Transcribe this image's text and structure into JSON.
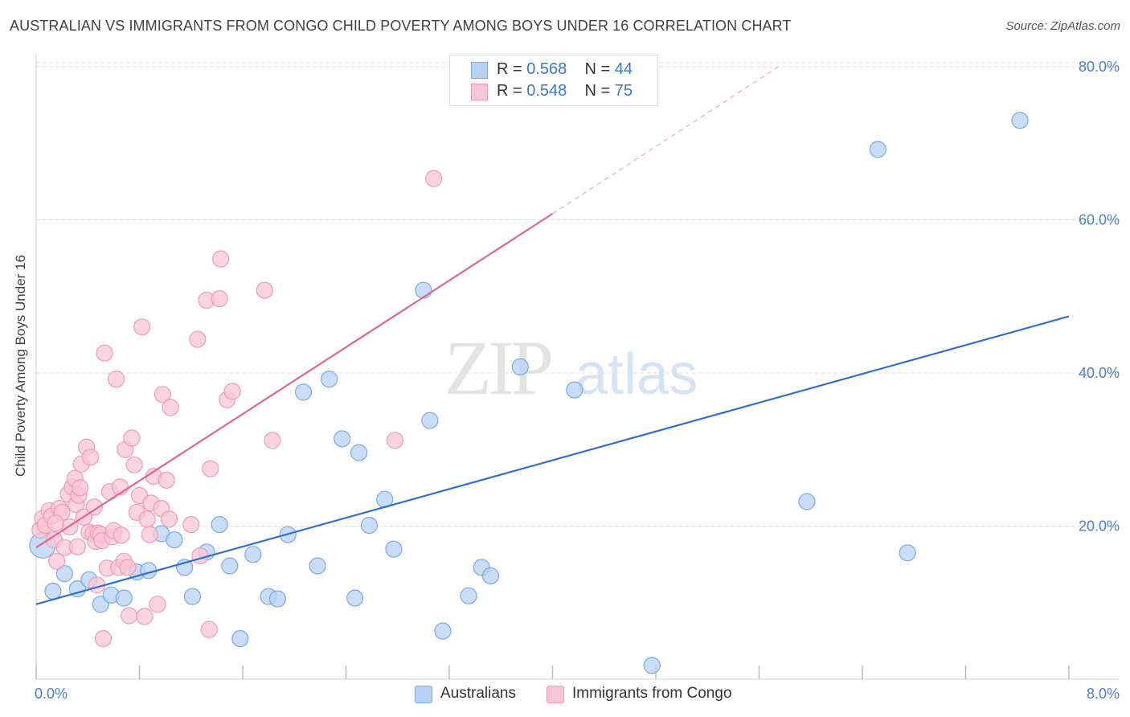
{
  "title": "AUSTRALIAN VS IMMIGRANTS FROM CONGO CHILD POVERTY AMONG BOYS UNDER 16 CORRELATION CHART",
  "source": "Source: ZipAtlas.com",
  "watermark": {
    "zip": "ZIP",
    "atlas": "atlas"
  },
  "legend": {
    "rows": [
      {
        "r_label": "R =",
        "r_value": "0.568",
        "n_label": "N =",
        "n_value": "44"
      },
      {
        "r_label": "R =",
        "r_value": "0.548",
        "n_label": "N =",
        "n_value": "75"
      }
    ]
  },
  "bottom_legend": [
    "Australians",
    "Immigrants from Congo"
  ],
  "colors": {
    "australians_fill": "#b8d2f4",
    "australians_stroke": "#7ba8e6",
    "australians_line": "#2f6fcf",
    "congo_fill": "#f8c6d6",
    "congo_stroke": "#ee9ab7",
    "congo_line": "#e0668f",
    "grid": "#dddddd",
    "tick_text": "#4a7fd0"
  },
  "chart_data": {
    "type": "scatter",
    "title": "AUSTRALIAN VS IMMIGRANTS FROM CONGO CHILD POVERTY AMONG BOYS UNDER 16 CORRELATION CHART",
    "xlabel": "",
    "ylabel": "Child Poverty Among Boys Under 16",
    "xlim": [
      0,
      8
    ],
    "ylim": [
      0,
      82
    ],
    "x_tick_labels": [
      "0.0%",
      "8.0%"
    ],
    "y_ticks": [
      20,
      40,
      60,
      80
    ],
    "y_tick_labels": [
      "20.0%",
      "40.0%",
      "60.0%",
      "80.0%"
    ],
    "grid": true,
    "legend_position": "top-center",
    "series": [
      {
        "name": "Australians",
        "R": 0.568,
        "N": 44,
        "trend": {
          "x": [
            0.0,
            8.0
          ],
          "y": [
            9.8,
            47.4
          ]
        },
        "points": [
          [
            0.05,
            17.5
          ],
          [
            0.13,
            11.5
          ],
          [
            0.22,
            13.8
          ],
          [
            0.32,
            11.8
          ],
          [
            0.41,
            13.0
          ],
          [
            0.5,
            9.8
          ],
          [
            0.58,
            11.0
          ],
          [
            0.68,
            10.6
          ],
          [
            0.78,
            14.0
          ],
          [
            0.87,
            14.2
          ],
          [
            0.97,
            19.0
          ],
          [
            1.07,
            18.2
          ],
          [
            1.15,
            14.6
          ],
          [
            1.21,
            10.8
          ],
          [
            1.32,
            16.6
          ],
          [
            1.42,
            20.2
          ],
          [
            1.5,
            14.8
          ],
          [
            1.58,
            5.3
          ],
          [
            1.68,
            16.3
          ],
          [
            1.8,
            10.8
          ],
          [
            1.87,
            10.5
          ],
          [
            1.95,
            18.9
          ],
          [
            2.07,
            37.5
          ],
          [
            2.18,
            14.8
          ],
          [
            2.27,
            39.2
          ],
          [
            2.37,
            31.4
          ],
          [
            2.47,
            10.6
          ],
          [
            2.5,
            29.6
          ],
          [
            2.58,
            20.1
          ],
          [
            2.7,
            23.5
          ],
          [
            2.77,
            17.0
          ],
          [
            3.0,
            50.8
          ],
          [
            3.05,
            33.8
          ],
          [
            3.15,
            6.3
          ],
          [
            3.35,
            10.9
          ],
          [
            3.45,
            14.6
          ],
          [
            3.52,
            13.5
          ],
          [
            3.75,
            40.8
          ],
          [
            4.17,
            37.8
          ],
          [
            4.77,
            1.8
          ],
          [
            5.97,
            23.2
          ],
          [
            6.52,
            69.2
          ],
          [
            6.75,
            16.5
          ],
          [
            7.62,
            73.0
          ]
        ]
      },
      {
        "name": "Immigrants from Congo",
        "R": 0.548,
        "N": 75,
        "trend": {
          "x": [
            0.0,
            4.0
          ],
          "y": [
            17.2,
            60.8
          ]
        },
        "trend_extension": {
          "x": [
            4.0,
            5.75
          ],
          "y": [
            60.8,
            80.0
          ]
        },
        "points": [
          [
            0.03,
            19.5
          ],
          [
            0.05,
            21.0
          ],
          [
            0.07,
            20.1
          ],
          [
            0.1,
            22.0
          ],
          [
            0.12,
            21.3
          ],
          [
            0.14,
            18.2
          ],
          [
            0.16,
            15.4
          ],
          [
            0.18,
            22.3
          ],
          [
            0.2,
            21.8
          ],
          [
            0.22,
            17.2
          ],
          [
            0.25,
            24.2
          ],
          [
            0.26,
            19.9
          ],
          [
            0.28,
            25.1
          ],
          [
            0.3,
            26.2
          ],
          [
            0.31,
            22.8
          ],
          [
            0.32,
            17.3
          ],
          [
            0.33,
            24.0
          ],
          [
            0.34,
            25.0
          ],
          [
            0.35,
            28.1
          ],
          [
            0.37,
            21.2
          ],
          [
            0.39,
            30.3
          ],
          [
            0.41,
            19.2
          ],
          [
            0.42,
            29.0
          ],
          [
            0.44,
            19.0
          ],
          [
            0.46,
            18.0
          ],
          [
            0.47,
            12.3
          ],
          [
            0.48,
            19.1
          ],
          [
            0.5,
            18.9
          ],
          [
            0.51,
            18.1
          ],
          [
            0.52,
            5.3
          ],
          [
            0.53,
            42.6
          ],
          [
            0.55,
            14.5
          ],
          [
            0.57,
            24.5
          ],
          [
            0.59,
            18.6
          ],
          [
            0.6,
            19.4
          ],
          [
            0.62,
            39.2
          ],
          [
            0.64,
            14.6
          ],
          [
            0.65,
            25.1
          ],
          [
            0.68,
            15.4
          ],
          [
            0.69,
            30.0
          ],
          [
            0.71,
            14.6
          ],
          [
            0.72,
            8.3
          ],
          [
            0.74,
            31.5
          ],
          [
            0.76,
            28.0
          ],
          [
            0.78,
            21.8
          ],
          [
            0.8,
            24.0
          ],
          [
            0.82,
            46.0
          ],
          [
            0.84,
            8.2
          ],
          [
            0.86,
            20.9
          ],
          [
            0.88,
            18.9
          ],
          [
            0.89,
            23.0
          ],
          [
            0.91,
            26.5
          ],
          [
            0.94,
            9.8
          ],
          [
            0.97,
            22.3
          ],
          [
            0.98,
            37.2
          ],
          [
            1.01,
            26.0
          ],
          [
            1.03,
            20.9
          ],
          [
            1.04,
            35.5
          ],
          [
            1.2,
            20.2
          ],
          [
            1.25,
            44.4
          ],
          [
            1.27,
            16.1
          ],
          [
            1.32,
            49.5
          ],
          [
            1.34,
            6.5
          ],
          [
            1.35,
            27.5
          ],
          [
            1.42,
            49.7
          ],
          [
            1.43,
            54.9
          ],
          [
            1.48,
            36.5
          ],
          [
            1.52,
            37.6
          ],
          [
            1.77,
            50.8
          ],
          [
            1.83,
            31.2
          ],
          [
            2.78,
            31.2
          ],
          [
            3.08,
            65.4
          ],
          [
            0.15,
            20.4
          ],
          [
            0.45,
            22.5
          ],
          [
            0.66,
            18.8
          ]
        ]
      }
    ]
  }
}
